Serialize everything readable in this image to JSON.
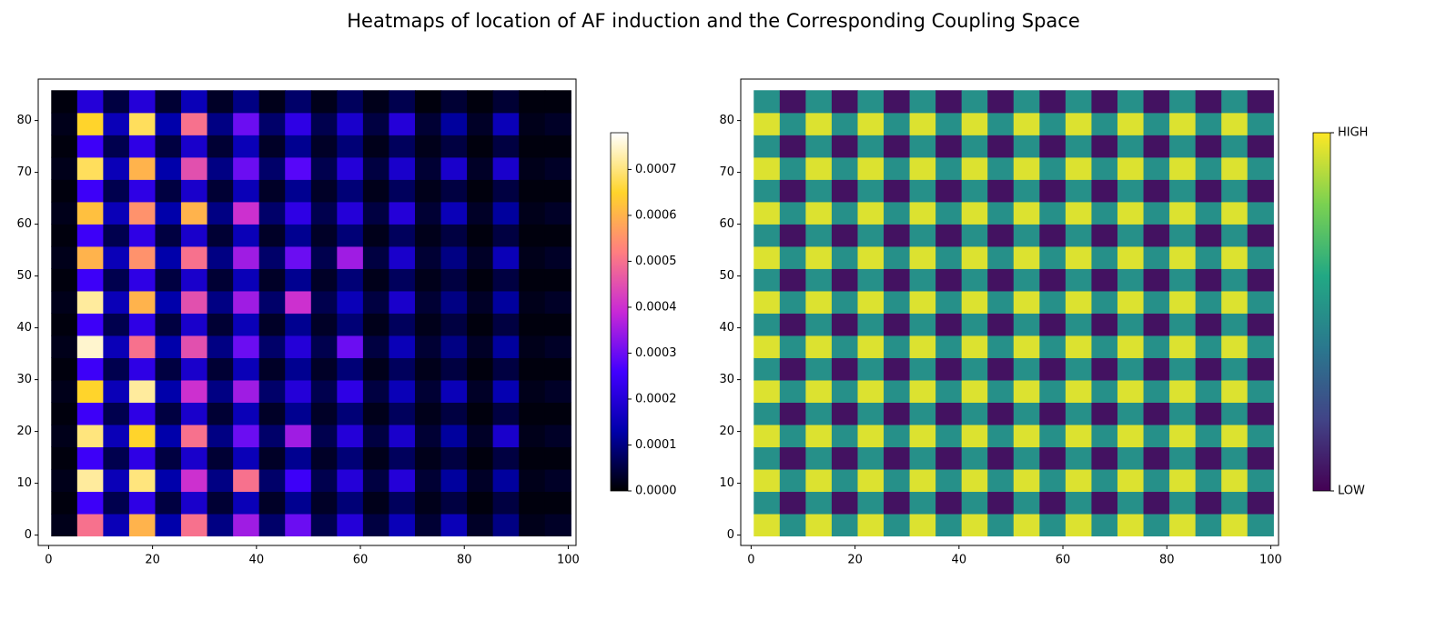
{
  "title": "Heatmaps of location of AF induction and the Corresponding Coupling Space",
  "chart_data": [
    {
      "type": "hexbin",
      "x": [
        3,
        8,
        13,
        18,
        23,
        28,
        33,
        38,
        43,
        48,
        53,
        58,
        63,
        68,
        73,
        78,
        83,
        88,
        93,
        98
      ],
      "y": [
        2,
        6.3,
        10.6,
        14.9,
        19.2,
        23.5,
        27.8,
        32.1,
        36.4,
        40.7,
        45,
        49.3,
        53.6,
        57.9,
        62.2,
        66.5,
        70.8,
        75.1,
        79.4,
        83.7
      ],
      "values": [
        [
          2e-05,
          0.0005,
          0.00015,
          0.0006,
          0.00013,
          0.0005,
          0.0001,
          0.00035,
          8e-05,
          0.0003,
          6e-05,
          0.0002,
          5e-05,
          0.00015,
          4e-05,
          0.00015,
          3e-05,
          0.0001,
          2e-05,
          3e-05
        ],
        [
          1e-05,
          0.00025,
          6e-05,
          0.00022,
          5e-05,
          0.00018,
          4e-05,
          0.00015,
          3e-05,
          0.00011,
          3e-05,
          9e-05,
          2e-05,
          7e-05,
          2e-05,
          5e-05,
          1e-05,
          5e-05,
          1e-05,
          1e-05
        ],
        [
          2e-05,
          0.00072,
          0.00015,
          0.0007,
          0.00013,
          0.0004,
          0.0001,
          0.0005,
          8e-05,
          0.00025,
          6e-05,
          0.0002,
          5e-05,
          0.0002,
          4e-05,
          0.00012,
          3e-05,
          0.00012,
          2e-05,
          3e-05
        ],
        [
          1e-05,
          0.00025,
          6e-05,
          0.00022,
          5e-05,
          0.00018,
          4e-05,
          0.00015,
          3e-05,
          0.00011,
          3e-05,
          9e-05,
          2e-05,
          7e-05,
          2e-05,
          5e-05,
          1e-05,
          5e-05,
          1e-05,
          1e-05
        ],
        [
          2e-05,
          0.0007,
          0.00015,
          0.00065,
          0.00013,
          0.0005,
          0.0001,
          0.0003,
          8e-05,
          0.00035,
          6e-05,
          0.0002,
          5e-05,
          0.00018,
          4e-05,
          0.00012,
          3e-05,
          0.00018,
          2e-05,
          3e-05
        ],
        [
          1e-05,
          0.00025,
          6e-05,
          0.00022,
          5e-05,
          0.00018,
          4e-05,
          0.00015,
          3e-05,
          0.00011,
          3e-05,
          9e-05,
          2e-05,
          7e-05,
          2e-05,
          5e-05,
          1e-05,
          5e-05,
          1e-05,
          1e-05
        ],
        [
          2e-05,
          0.00065,
          0.00015,
          0.00072,
          0.00013,
          0.0004,
          0.0001,
          0.00035,
          8e-05,
          0.0002,
          6e-05,
          0.00022,
          5e-05,
          0.00015,
          4e-05,
          0.00015,
          3e-05,
          0.00014,
          2e-05,
          3e-05
        ],
        [
          1e-05,
          0.00025,
          6e-05,
          0.00022,
          5e-05,
          0.00018,
          4e-05,
          0.00015,
          3e-05,
          0.00011,
          3e-05,
          9e-05,
          2e-05,
          7e-05,
          2e-05,
          5e-05,
          1e-05,
          5e-05,
          1e-05,
          1e-05
        ],
        [
          2e-05,
          0.00075,
          0.00015,
          0.0005,
          0.00013,
          0.00045,
          0.0001,
          0.0003,
          8e-05,
          0.0002,
          6e-05,
          0.0003,
          5e-05,
          0.00015,
          4e-05,
          0.0001,
          3e-05,
          0.00012,
          2e-05,
          3e-05
        ],
        [
          1e-05,
          0.00025,
          6e-05,
          0.00022,
          5e-05,
          0.00018,
          4e-05,
          0.00015,
          3e-05,
          0.00011,
          3e-05,
          9e-05,
          2e-05,
          7e-05,
          2e-05,
          5e-05,
          1e-05,
          5e-05,
          1e-05,
          1e-05
        ],
        [
          2e-05,
          0.00072,
          0.00015,
          0.0006,
          0.00013,
          0.00045,
          0.0001,
          0.00035,
          8e-05,
          0.0004,
          6e-05,
          0.00015,
          5e-05,
          0.00018,
          4e-05,
          0.0001,
          3e-05,
          0.00012,
          2e-05,
          3e-05
        ],
        [
          1e-05,
          0.00025,
          6e-05,
          0.00022,
          5e-05,
          0.00018,
          4e-05,
          0.00015,
          3e-05,
          0.00011,
          3e-05,
          9e-05,
          2e-05,
          7e-05,
          2e-05,
          5e-05,
          1e-05,
          5e-05,
          1e-05,
          1e-05
        ],
        [
          2e-05,
          0.0006,
          0.00015,
          0.00055,
          0.00013,
          0.0005,
          0.0001,
          0.00035,
          8e-05,
          0.0003,
          6e-05,
          0.00035,
          5e-05,
          0.00018,
          4e-05,
          0.0001,
          3e-05,
          0.00015,
          2e-05,
          3e-05
        ],
        [
          1e-05,
          0.00025,
          6e-05,
          0.00022,
          5e-05,
          0.00018,
          4e-05,
          0.00015,
          3e-05,
          0.00011,
          3e-05,
          9e-05,
          2e-05,
          7e-05,
          2e-05,
          5e-05,
          1e-05,
          5e-05,
          1e-05,
          1e-05
        ],
        [
          2e-05,
          0.00062,
          0.00015,
          0.00055,
          0.00013,
          0.0006,
          0.0001,
          0.0004,
          8e-05,
          0.00022,
          6e-05,
          0.0002,
          5e-05,
          0.0002,
          4e-05,
          0.00015,
          3e-05,
          0.00012,
          2e-05,
          3e-05
        ],
        [
          1e-05,
          0.00025,
          6e-05,
          0.00022,
          5e-05,
          0.00018,
          4e-05,
          0.00015,
          3e-05,
          0.00011,
          3e-05,
          9e-05,
          2e-05,
          7e-05,
          2e-05,
          5e-05,
          1e-05,
          5e-05,
          1e-05,
          1e-05
        ],
        [
          2e-05,
          0.00068,
          0.00015,
          0.0006,
          0.00013,
          0.00045,
          0.0001,
          0.0003,
          8e-05,
          0.00028,
          6e-05,
          0.0002,
          5e-05,
          0.00018,
          4e-05,
          0.00018,
          3e-05,
          0.00018,
          2e-05,
          3e-05
        ],
        [
          1e-05,
          0.00025,
          6e-05,
          0.00022,
          5e-05,
          0.00018,
          4e-05,
          0.00015,
          3e-05,
          0.00011,
          3e-05,
          9e-05,
          2e-05,
          7e-05,
          2e-05,
          5e-05,
          1e-05,
          5e-05,
          1e-05,
          1e-05
        ],
        [
          2e-05,
          0.00065,
          0.00015,
          0.00068,
          0.00013,
          0.0005,
          0.0001,
          0.0003,
          8e-05,
          0.00022,
          6e-05,
          0.00018,
          5e-05,
          0.0002,
          4e-05,
          0.00012,
          3e-05,
          0.00015,
          2e-05,
          3e-05
        ],
        [
          1e-05,
          0.0002,
          5e-05,
          0.0002,
          4e-05,
          0.00015,
          3e-05,
          0.0001,
          2e-05,
          8e-05,
          2e-05,
          7e-05,
          2e-05,
          6e-05,
          1e-05,
          4e-05,
          1e-05,
          4e-05,
          1e-05,
          1e-05
        ]
      ],
      "xlim": [
        -2,
        101.5
      ],
      "ylim": [
        -2,
        88
      ],
      "xticks": [
        0,
        20,
        40,
        60,
        80,
        100
      ],
      "yticks": [
        0,
        10,
        20,
        30,
        40,
        50,
        60,
        70,
        80
      ],
      "colormap": [
        "#000000",
        "#0000aa",
        "#4200ff",
        "#c829d6",
        "#ff7e80",
        "#ffd42b",
        "#ffffff"
      ],
      "clim": [
        0,
        0.00078
      ],
      "cticks": [
        {
          "value": 0,
          "label": "0.0000"
        },
        {
          "value": 0.0001,
          "label": "0.0001"
        },
        {
          "value": 0.0002,
          "label": "0.0002"
        },
        {
          "value": 0.0003,
          "label": "0.0003"
        },
        {
          "value": 0.0004,
          "label": "0.0004"
        },
        {
          "value": 0.0005,
          "label": "0.0005"
        },
        {
          "value": 0.0006,
          "label": "0.0006"
        },
        {
          "value": 0.0007,
          "label": "0.0007"
        }
      ]
    },
    {
      "type": "hexbin",
      "x": [
        3,
        8,
        13,
        18,
        23,
        28,
        33,
        38,
        43,
        48,
        53,
        58,
        63,
        68,
        73,
        78,
        83,
        88,
        93,
        98
      ],
      "y": [
        2,
        6.3,
        10.6,
        14.9,
        19.2,
        23.5,
        27.8,
        32.1,
        36.4,
        40.7,
        45,
        49.3,
        53.6,
        57.9,
        62.2,
        66.5,
        70.8,
        75.1,
        79.4,
        83.7
      ],
      "values": [
        [
          0.95,
          0.5,
          0.95,
          0.5,
          0.95,
          0.5,
          0.95,
          0.5,
          0.95,
          0.5,
          0.95,
          0.5,
          0.95,
          0.5,
          0.95,
          0.5,
          0.95,
          0.5,
          0.95,
          0.5
        ],
        [
          0.5,
          0.05,
          0.5,
          0.05,
          0.5,
          0.05,
          0.5,
          0.05,
          0.5,
          0.05,
          0.5,
          0.05,
          0.5,
          0.05,
          0.5,
          0.05,
          0.5,
          0.05,
          0.5,
          0.05
        ],
        [
          0.95,
          0.5,
          0.95,
          0.5,
          0.95,
          0.5,
          0.95,
          0.5,
          0.95,
          0.5,
          0.95,
          0.5,
          0.95,
          0.5,
          0.95,
          0.5,
          0.95,
          0.5,
          0.95,
          0.5
        ],
        [
          0.5,
          0.05,
          0.5,
          0.05,
          0.5,
          0.05,
          0.5,
          0.05,
          0.5,
          0.05,
          0.5,
          0.05,
          0.5,
          0.05,
          0.5,
          0.05,
          0.5,
          0.05,
          0.5,
          0.05
        ],
        [
          0.95,
          0.5,
          0.95,
          0.5,
          0.95,
          0.5,
          0.95,
          0.5,
          0.95,
          0.5,
          0.95,
          0.5,
          0.95,
          0.5,
          0.95,
          0.5,
          0.95,
          0.5,
          0.95,
          0.5
        ],
        [
          0.5,
          0.05,
          0.5,
          0.05,
          0.5,
          0.05,
          0.5,
          0.05,
          0.5,
          0.05,
          0.5,
          0.05,
          0.5,
          0.05,
          0.5,
          0.05,
          0.5,
          0.05,
          0.5,
          0.05
        ],
        [
          0.95,
          0.5,
          0.95,
          0.5,
          0.95,
          0.5,
          0.95,
          0.5,
          0.95,
          0.5,
          0.95,
          0.5,
          0.95,
          0.5,
          0.95,
          0.5,
          0.95,
          0.5,
          0.95,
          0.5
        ],
        [
          0.5,
          0.05,
          0.5,
          0.05,
          0.5,
          0.05,
          0.5,
          0.05,
          0.5,
          0.05,
          0.5,
          0.05,
          0.5,
          0.05,
          0.5,
          0.05,
          0.5,
          0.05,
          0.5,
          0.05
        ],
        [
          0.95,
          0.5,
          0.95,
          0.5,
          0.95,
          0.5,
          0.95,
          0.5,
          0.95,
          0.5,
          0.95,
          0.5,
          0.95,
          0.5,
          0.95,
          0.5,
          0.95,
          0.5,
          0.95,
          0.5
        ],
        [
          0.5,
          0.05,
          0.5,
          0.05,
          0.5,
          0.05,
          0.5,
          0.05,
          0.5,
          0.05,
          0.5,
          0.05,
          0.5,
          0.05,
          0.5,
          0.05,
          0.5,
          0.05,
          0.5,
          0.05
        ],
        [
          0.95,
          0.5,
          0.95,
          0.5,
          0.95,
          0.5,
          0.95,
          0.5,
          0.95,
          0.5,
          0.95,
          0.5,
          0.95,
          0.5,
          0.95,
          0.5,
          0.95,
          0.5,
          0.95,
          0.5
        ],
        [
          0.5,
          0.05,
          0.5,
          0.05,
          0.5,
          0.05,
          0.5,
          0.05,
          0.5,
          0.05,
          0.5,
          0.05,
          0.5,
          0.05,
          0.5,
          0.05,
          0.5,
          0.05,
          0.5,
          0.05
        ],
        [
          0.95,
          0.5,
          0.95,
          0.5,
          0.95,
          0.5,
          0.95,
          0.5,
          0.95,
          0.5,
          0.95,
          0.5,
          0.95,
          0.5,
          0.95,
          0.5,
          0.95,
          0.5,
          0.95,
          0.5
        ],
        [
          0.5,
          0.05,
          0.5,
          0.05,
          0.5,
          0.05,
          0.5,
          0.05,
          0.5,
          0.05,
          0.5,
          0.05,
          0.5,
          0.05,
          0.5,
          0.05,
          0.5,
          0.05,
          0.5,
          0.05
        ],
        [
          0.95,
          0.5,
          0.95,
          0.5,
          0.95,
          0.5,
          0.95,
          0.5,
          0.95,
          0.5,
          0.95,
          0.5,
          0.95,
          0.5,
          0.95,
          0.5,
          0.95,
          0.5,
          0.95,
          0.5
        ],
        [
          0.5,
          0.05,
          0.5,
          0.05,
          0.5,
          0.05,
          0.5,
          0.05,
          0.5,
          0.05,
          0.5,
          0.05,
          0.5,
          0.05,
          0.5,
          0.05,
          0.5,
          0.05,
          0.5,
          0.05
        ],
        [
          0.95,
          0.5,
          0.95,
          0.5,
          0.95,
          0.5,
          0.95,
          0.5,
          0.95,
          0.5,
          0.95,
          0.5,
          0.95,
          0.5,
          0.95,
          0.5,
          0.95,
          0.5,
          0.95,
          0.5
        ],
        [
          0.5,
          0.05,
          0.5,
          0.05,
          0.5,
          0.05,
          0.5,
          0.05,
          0.5,
          0.05,
          0.5,
          0.05,
          0.5,
          0.05,
          0.5,
          0.05,
          0.5,
          0.05,
          0.5,
          0.05
        ],
        [
          0.95,
          0.5,
          0.95,
          0.5,
          0.95,
          0.5,
          0.95,
          0.5,
          0.95,
          0.5,
          0.95,
          0.5,
          0.95,
          0.5,
          0.95,
          0.5,
          0.95,
          0.5,
          0.95,
          0.5
        ],
        [
          0.5,
          0.05,
          0.5,
          0.05,
          0.5,
          0.05,
          0.5,
          0.05,
          0.5,
          0.05,
          0.5,
          0.05,
          0.5,
          0.05,
          0.5,
          0.05,
          0.5,
          0.05,
          0.5,
          0.05
        ]
      ],
      "xlim": [
        -2,
        101.5
      ],
      "ylim": [
        -2,
        88
      ],
      "xticks": [
        0,
        20,
        40,
        60,
        80,
        100
      ],
      "yticks": [
        0,
        10,
        20,
        30,
        40,
        50,
        60,
        70,
        80
      ],
      "colormap": [
        "#440154",
        "#414487",
        "#2a788e",
        "#22a884",
        "#7ad151",
        "#fde725"
      ],
      "clim": [
        0,
        1
      ],
      "cticks": [
        {
          "value": 0,
          "label": "LOW"
        },
        {
          "value": 1,
          "label": "HIGH"
        }
      ]
    }
  ]
}
